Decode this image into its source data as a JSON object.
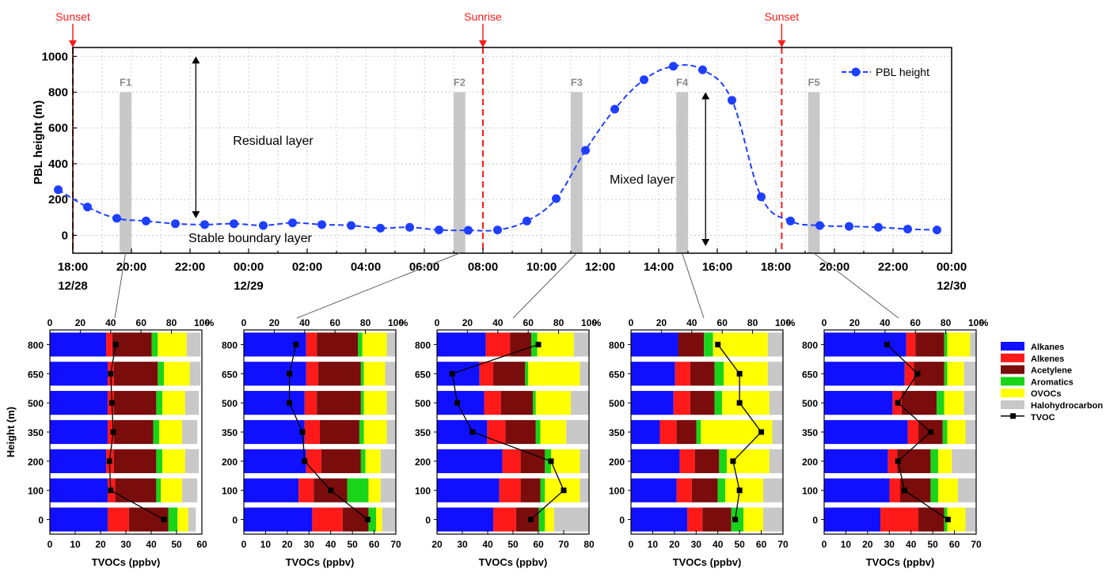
{
  "colors": {
    "pbl": "#1f3fff",
    "event": "#ff1a1a",
    "band": "#c8c8c8",
    "flight_label": "#8c8c8c",
    "alkanes": "#1010ff",
    "alkenes": "#ff1a1a",
    "acetylene": "#7a0c0c",
    "aromatics": "#1ad41a",
    "ovocs": "#ffff00",
    "halohydrocarbon": "#c8c8c8",
    "tvoc": "#000000",
    "connector": "#606060"
  },
  "chart_data": [
    {
      "type": "line",
      "ylabel": "PBL height (m)",
      "ylim": [
        -100,
        1050
      ],
      "yticks": [
        0,
        200,
        400,
        600,
        800,
        1000
      ],
      "xlim": [
        0,
        30
      ],
      "xticks": [
        {
          "x": 0,
          "time": "18:00",
          "date": "12/28"
        },
        {
          "x": 2,
          "time": "20:00",
          "date": ""
        },
        {
          "x": 4,
          "time": "22:00",
          "date": ""
        },
        {
          "x": 6,
          "time": "00:00",
          "date": "12/29"
        },
        {
          "x": 8,
          "time": "02:00",
          "date": ""
        },
        {
          "x": 10,
          "time": "04:00",
          "date": ""
        },
        {
          "x": 12,
          "time": "06:00",
          "date": ""
        },
        {
          "x": 14,
          "time": "08:00",
          "date": ""
        },
        {
          "x": 16,
          "time": "10:00",
          "date": ""
        },
        {
          "x": 18,
          "time": "12:00",
          "date": ""
        },
        {
          "x": 20,
          "time": "14:00",
          "date": ""
        },
        {
          "x": 22,
          "time": "16:00",
          "date": ""
        },
        {
          "x": 24,
          "time": "18:00",
          "date": ""
        },
        {
          "x": 26,
          "time": "20:00",
          "date": ""
        },
        {
          "x": 28,
          "time": "22:00",
          "date": ""
        },
        {
          "x": 30,
          "time": "00:00",
          "date": "12/30"
        }
      ],
      "legend": "PBL height",
      "series": [
        {
          "name": "PBL height",
          "x": [
            -0.5,
            0.5,
            1.5,
            2.5,
            3.5,
            4.5,
            5.5,
            6.5,
            7.5,
            8.5,
            9.5,
            10.5,
            11.5,
            12.5,
            13.5,
            14.5,
            15.5,
            16.5,
            17.5,
            18.5,
            19.5,
            20.5,
            21.5,
            22.5,
            23.5,
            24.5,
            25.5,
            26.5,
            27.5,
            28.5,
            29.5
          ],
          "y": [
            255,
            158,
            95,
            80,
            65,
            60,
            65,
            55,
            70,
            60,
            55,
            40,
            45,
            30,
            28,
            30,
            80,
            205,
            475,
            705,
            870,
            945,
            925,
            755,
            215,
            80,
            55,
            50,
            45,
            35,
            30
          ]
        }
      ],
      "events": [
        {
          "x": 0,
          "label": "Sunset"
        },
        {
          "x": 14,
          "label": "Sunrise"
        },
        {
          "x": 24.2,
          "label": "Sunset"
        }
      ],
      "flights": [
        {
          "label": "F1",
          "x0": 1.6,
          "x1": 2.0
        },
        {
          "label": "F2",
          "x0": 13.0,
          "x1": 13.4
        },
        {
          "label": "F3",
          "x0": 17.0,
          "x1": 17.4
        },
        {
          "label": "F4",
          "x0": 20.6,
          "x1": 21.0
        },
        {
          "label": "F5",
          "x0": 25.1,
          "x1": 25.5
        }
      ],
      "annotations": [
        "Residual layer",
        "Mixed layer",
        "Stable boundary layer"
      ]
    },
    {
      "type": "bar",
      "flight": "F1",
      "heights": [
        "800",
        "650",
        "500",
        "350",
        "200",
        "100",
        "0"
      ],
      "xlim_conc": [
        0,
        60
      ],
      "xticks_conc": [
        0,
        10,
        20,
        30,
        40,
        50,
        60
      ],
      "xticks_pct": [
        0,
        20,
        40,
        60,
        80,
        100
      ],
      "xlabel": "TVOCs (ppbv)",
      "ylabel": "Height (m)",
      "percent_unit": "%",
      "series": [
        {
          "name": "Alkanes",
          "values": [
            37,
            38,
            38,
            38,
            37,
            38,
            38
          ]
        },
        {
          "name": "Alkenes",
          "values": [
            4,
            4,
            4,
            4,
            5,
            5,
            14
          ]
        },
        {
          "name": "Acetylene",
          "values": [
            26,
            29,
            28,
            26,
            28,
            27,
            26
          ]
        },
        {
          "name": "Aromatics",
          "values": [
            4,
            4,
            4,
            4,
            4,
            3,
            6
          ]
        },
        {
          "name": "OVOCs",
          "values": [
            19,
            17,
            15,
            15,
            15,
            14,
            7
          ]
        },
        {
          "name": "Halohydrocarbon",
          "values": [
            9,
            7,
            9,
            10,
            9,
            10,
            5
          ]
        }
      ],
      "tvoc": [
        26,
        24,
        24.5,
        25,
        23.5,
        24,
        45
      ]
    },
    {
      "type": "bar",
      "flight": "F2",
      "heights": [
        "800",
        "650",
        "500",
        "350",
        "200",
        "100",
        "0"
      ],
      "xlim_conc": [
        0,
        70
      ],
      "xticks_conc": [
        0,
        10,
        20,
        30,
        40,
        50,
        60,
        70
      ],
      "xticks_pct": [
        0,
        20,
        40,
        60,
        80,
        100
      ],
      "xlabel": "TVOCs (ppbv)",
      "ylabel": "",
      "percent_unit": "%",
      "series": [
        {
          "name": "Alkanes",
          "values": [
            41,
            41,
            40,
            40,
            41,
            36,
            45
          ]
        },
        {
          "name": "Alkenes",
          "values": [
            7,
            8,
            8,
            10,
            10,
            10,
            20
          ]
        },
        {
          "name": "Acetylene",
          "values": [
            27,
            28,
            29,
            26,
            26,
            22,
            17
          ]
        },
        {
          "name": "Aromatics",
          "values": [
            3,
            2,
            2,
            3,
            3,
            14,
            5
          ]
        },
        {
          "name": "OVOCs",
          "values": [
            16,
            14,
            15,
            15,
            10,
            8,
            4
          ]
        },
        {
          "name": "Halohydrocarbon",
          "values": [
            6,
            7,
            6,
            6,
            10,
            10,
            9
          ]
        }
      ],
      "tvoc": [
        24,
        21,
        21,
        27,
        28,
        40,
        57
      ]
    },
    {
      "type": "bar",
      "flight": "F3",
      "heights": [
        "800",
        "650",
        "500",
        "350",
        "200",
        "100",
        "0"
      ],
      "xlim_conc": [
        20,
        80
      ],
      "xticks_conc": [
        20,
        30,
        40,
        50,
        60,
        70,
        80
      ],
      "xticks_pct": [
        0,
        20,
        40,
        60,
        80,
        100
      ],
      "xlabel": "TVOCs (ppbv)",
      "ylabel": "",
      "percent_unit": "%",
      "series": [
        {
          "name": "Alkanes",
          "values": [
            32,
            28,
            31,
            33,
            43,
            41,
            37
          ]
        },
        {
          "name": "Alkenes",
          "values": [
            16,
            9,
            11,
            12,
            12,
            14,
            15
          ]
        },
        {
          "name": "Acetylene",
          "values": [
            14,
            21,
            21,
            20,
            16,
            13,
            15
          ]
        },
        {
          "name": "Aromatics",
          "values": [
            4,
            2,
            2,
            3,
            4,
            3,
            4
          ]
        },
        {
          "name": "OVOCs",
          "values": [
            24,
            34,
            23,
            17,
            19,
            23,
            6
          ]
        },
        {
          "name": "Halohydrocarbon",
          "values": [
            10,
            6,
            12,
            15,
            6,
            6,
            23
          ]
        }
      ],
      "tvoc": [
        60,
        26,
        28,
        34,
        65,
        70,
        57
      ]
    },
    {
      "type": "bar",
      "flight": "F4",
      "heights": [
        "800",
        "650",
        "500",
        "350",
        "200",
        "100",
        "0"
      ],
      "xlim_conc": [
        0,
        70
      ],
      "xticks_conc": [
        0,
        10,
        20,
        30,
        40,
        50,
        60,
        70
      ],
      "xticks_pct": [
        0,
        20,
        40,
        60,
        80,
        100
      ],
      "xlabel": "TVOCs (ppbv)",
      "ylabel": "",
      "percent_unit": "%",
      "series": [
        {
          "name": "Alkanes",
          "values": [
            31,
            29,
            28,
            19,
            32,
            30,
            37
          ]
        },
        {
          "name": "Alkenes",
          "values": [
            0,
            10,
            11,
            11,
            10,
            10,
            10
          ]
        },
        {
          "name": "Acetylene",
          "values": [
            17,
            16,
            16,
            13,
            16,
            17,
            19
          ]
        },
        {
          "name": "Aromatics",
          "values": [
            6,
            6,
            5,
            3,
            5,
            5,
            8
          ]
        },
        {
          "name": "OVOCs",
          "values": [
            36,
            29,
            31,
            47,
            28,
            25,
            13
          ]
        },
        {
          "name": "Halohydrocarbon",
          "values": [
            10,
            10,
            9,
            7,
            9,
            13,
            13
          ]
        }
      ],
      "tvoc": [
        40,
        50,
        50,
        60,
        47,
        50,
        48
      ]
    },
    {
      "type": "bar",
      "flight": "F5",
      "heights": [
        "800",
        "650",
        "500",
        "350",
        "200",
        "100",
        "0"
      ],
      "xlim_conc": [
        0,
        70
      ],
      "xticks_conc": [
        0,
        10,
        20,
        30,
        40,
        50,
        60,
        70
      ],
      "xticks_pct": [
        0,
        20,
        40,
        60,
        80,
        100
      ],
      "xlabel": "TVOCs (ppbv)",
      "ylabel": "",
      "percent_unit": "%",
      "series": [
        {
          "name": "Alkanes",
          "values": [
            54,
            53,
            45,
            55,
            42,
            43,
            37
          ]
        },
        {
          "name": "Alkenes",
          "values": [
            6,
            6,
            6,
            7,
            6,
            7,
            25
          ]
        },
        {
          "name": "Acetylene",
          "values": [
            19,
            20,
            23,
            16,
            22,
            20,
            17
          ]
        },
        {
          "name": "Aromatics",
          "values": [
            2,
            2,
            5,
            3,
            5,
            5,
            2
          ]
        },
        {
          "name": "OVOCs",
          "values": [
            15,
            11,
            13,
            12,
            9,
            13,
            12
          ]
        },
        {
          "name": "Halohydrocarbon",
          "values": [
            4,
            8,
            8,
            7,
            16,
            12,
            7
          ]
        }
      ],
      "tvoc": [
        29,
        43,
        34,
        49,
        34,
        37,
        57
      ]
    }
  ],
  "legend_items": [
    {
      "name": "Alkanes",
      "key": "alkanes"
    },
    {
      "name": "Alkenes",
      "key": "alkenes"
    },
    {
      "name": "Acetylene",
      "key": "acetylene"
    },
    {
      "name": "Aromatics",
      "key": "aromatics"
    },
    {
      "name": "OVOCs",
      "key": "ovocs"
    },
    {
      "name": "Halohydrocarbon",
      "key": "halohydrocarbon"
    },
    {
      "name": "TVOC",
      "key": "tvoc"
    }
  ]
}
